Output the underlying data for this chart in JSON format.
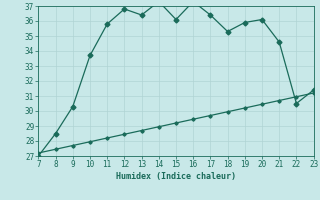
{
  "xlabel": "Humidex (Indice chaleur)",
  "bg_color": "#c8e8e8",
  "line_color": "#1a6b5a",
  "grid_color": "#b0d4d4",
  "x_main": [
    7,
    8,
    9,
    10,
    11,
    12,
    13,
    14,
    15,
    16,
    17,
    18,
    19,
    20,
    21,
    22,
    23
  ],
  "y_main": [
    27.0,
    28.5,
    30.3,
    33.7,
    35.8,
    36.8,
    36.4,
    37.3,
    36.1,
    37.3,
    36.4,
    35.3,
    35.9,
    36.1,
    34.6,
    30.5,
    31.4
  ],
  "x_linear": [
    7,
    8,
    9,
    10,
    11,
    12,
    13,
    14,
    15,
    16,
    17,
    18,
    19,
    20,
    21,
    22,
    23
  ],
  "y_linear": [
    27.2,
    27.45,
    27.7,
    27.95,
    28.2,
    28.45,
    28.7,
    28.95,
    29.2,
    29.45,
    29.7,
    29.95,
    30.2,
    30.45,
    30.7,
    30.95,
    31.2
  ],
  "xlim": [
    7,
    23
  ],
  "ylim": [
    27,
    37
  ],
  "xticks": [
    7,
    8,
    9,
    10,
    11,
    12,
    13,
    14,
    15,
    16,
    17,
    18,
    19,
    20,
    21,
    22,
    23
  ],
  "yticks": [
    27,
    28,
    29,
    30,
    31,
    32,
    33,
    34,
    35,
    36,
    37
  ],
  "axis_fontsize": 6,
  "tick_fontsize": 5.5,
  "marker_size": 2.5,
  "line_width": 0.9
}
